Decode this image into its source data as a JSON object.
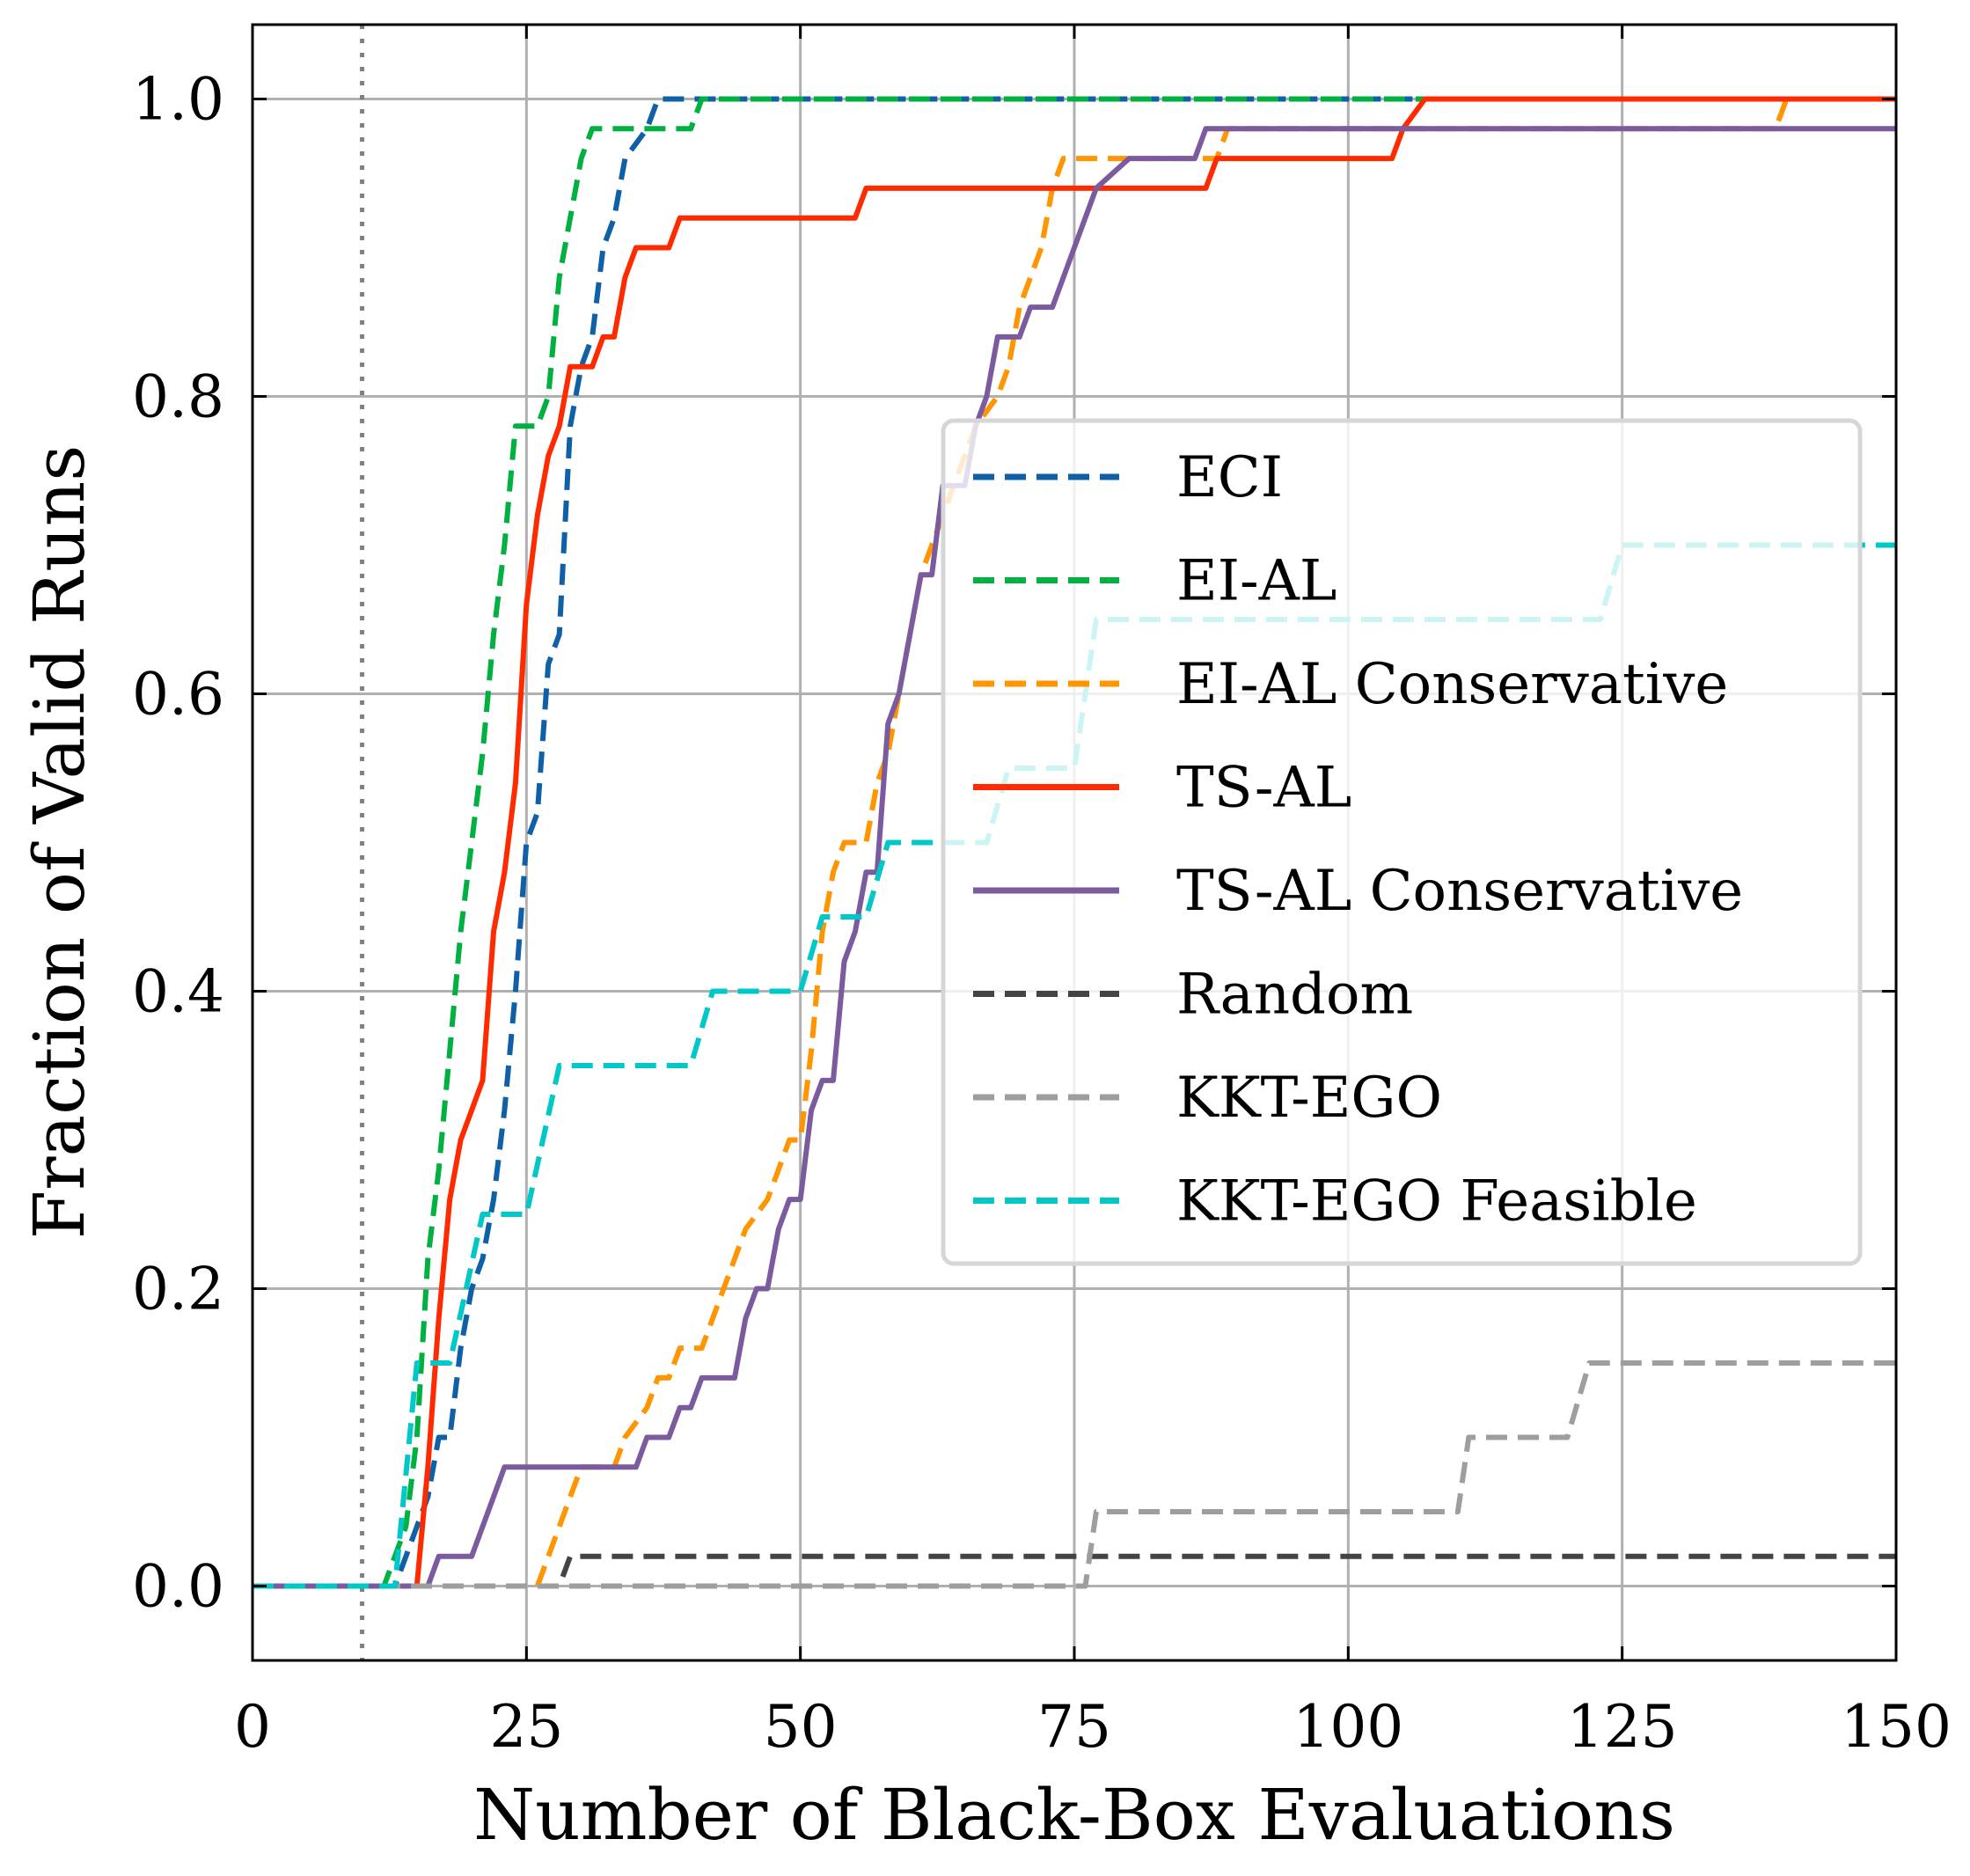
{
  "chart_data": {
    "type": "line",
    "title": "",
    "xlabel": "Number of Black-Box Evaluations",
    "ylabel": "Fraction of Valid Runs",
    "xlim": [
      0,
      150
    ],
    "ylim": [
      -0.05,
      1.05
    ],
    "xticks": [
      0,
      25,
      50,
      75,
      100,
      125,
      150
    ],
    "xtick_labels": [
      "0",
      "25",
      "50",
      "75",
      "100",
      "125",
      "150"
    ],
    "yticks": [
      0.0,
      0.2,
      0.4,
      0.6,
      0.8,
      1.0
    ],
    "ytick_labels": [
      "0.0",
      "0.2",
      "0.4",
      "0.6",
      "0.8",
      "1.0"
    ],
    "grid": true,
    "legend_position": "center-right",
    "reference_line": {
      "x": 10,
      "style": "dotted",
      "color": "#808080"
    },
    "series": [
      {
        "name": "ECI",
        "color": "#1060a8",
        "dash": "dashed",
        "points": [
          [
            0,
            0
          ],
          [
            13,
            0
          ],
          [
            16,
            0.06
          ],
          [
            17,
            0.1
          ],
          [
            18,
            0.1
          ],
          [
            19,
            0.16
          ],
          [
            20,
            0.2
          ],
          [
            21,
            0.22
          ],
          [
            22,
            0.26
          ],
          [
            23,
            0.32
          ],
          [
            24,
            0.4
          ],
          [
            25,
            0.5
          ],
          [
            26,
            0.52
          ],
          [
            27,
            0.62
          ],
          [
            28,
            0.64
          ],
          [
            29,
            0.78
          ],
          [
            30,
            0.82
          ],
          [
            31,
            0.84
          ],
          [
            32,
            0.9
          ],
          [
            33,
            0.92
          ],
          [
            34,
            0.96
          ],
          [
            36,
            0.98
          ],
          [
            37,
            1.0
          ],
          [
            150,
            1.0
          ]
        ]
      },
      {
        "name": "EI-AL",
        "color": "#00b040",
        "dash": "dashed",
        "points": [
          [
            0,
            0
          ],
          [
            12,
            0
          ],
          [
            14,
            0.04
          ],
          [
            15,
            0.1
          ],
          [
            16,
            0.22
          ],
          [
            17,
            0.28
          ],
          [
            18,
            0.36
          ],
          [
            19,
            0.44
          ],
          [
            20,
            0.5
          ],
          [
            21,
            0.56
          ],
          [
            22,
            0.64
          ],
          [
            23,
            0.7
          ],
          [
            24,
            0.78
          ],
          [
            26,
            0.78
          ],
          [
            27,
            0.8
          ],
          [
            28,
            0.88
          ],
          [
            29,
            0.92
          ],
          [
            30,
            0.96
          ],
          [
            31,
            0.98
          ],
          [
            40,
            0.98
          ],
          [
            41,
            1.0
          ],
          [
            150,
            1.0
          ]
        ]
      },
      {
        "name": "EI-AL Conservative",
        "color": "#ff9500",
        "dash": "dashed",
        "points": [
          [
            0,
            0
          ],
          [
            26,
            0
          ],
          [
            28,
            0.04
          ],
          [
            29,
            0.06
          ],
          [
            30,
            0.08
          ],
          [
            33,
            0.08
          ],
          [
            34,
            0.1
          ],
          [
            36,
            0.12
          ],
          [
            37,
            0.14
          ],
          [
            38,
            0.14
          ],
          [
            39,
            0.16
          ],
          [
            41,
            0.16
          ],
          [
            42,
            0.18
          ],
          [
            43,
            0.2
          ],
          [
            44,
            0.22
          ],
          [
            45,
            0.24
          ],
          [
            47,
            0.26
          ],
          [
            48,
            0.28
          ],
          [
            49,
            0.3
          ],
          [
            50,
            0.3
          ],
          [
            51,
            0.36
          ],
          [
            52,
            0.44
          ],
          [
            53,
            0.48
          ],
          [
            54,
            0.5
          ],
          [
            56,
            0.5
          ],
          [
            57,
            0.54
          ],
          [
            58,
            0.56
          ],
          [
            59,
            0.6
          ],
          [
            60,
            0.64
          ],
          [
            61,
            0.68
          ],
          [
            62,
            0.7
          ],
          [
            64,
            0.74
          ],
          [
            65,
            0.76
          ],
          [
            66,
            0.78
          ],
          [
            68,
            0.8
          ],
          [
            69,
            0.82
          ],
          [
            70,
            0.86
          ],
          [
            72,
            0.9
          ],
          [
            73,
            0.94
          ],
          [
            74,
            0.96
          ],
          [
            88,
            0.96
          ],
          [
            89,
            0.98
          ],
          [
            139,
            0.98
          ],
          [
            140,
            1.0
          ],
          [
            150,
            1.0
          ]
        ]
      },
      {
        "name": "TS-AL",
        "color": "#ff2b00",
        "dash": "solid",
        "points": [
          [
            0,
            0
          ],
          [
            15,
            0
          ],
          [
            16,
            0.08
          ],
          [
            17,
            0.18
          ],
          [
            18,
            0.26
          ],
          [
            19,
            0.3
          ],
          [
            20,
            0.32
          ],
          [
            21,
            0.34
          ],
          [
            22,
            0.44
          ],
          [
            23,
            0.48
          ],
          [
            24,
            0.54
          ],
          [
            25,
            0.66
          ],
          [
            26,
            0.72
          ],
          [
            27,
            0.76
          ],
          [
            28,
            0.78
          ],
          [
            29,
            0.82
          ],
          [
            31,
            0.82
          ],
          [
            32,
            0.84
          ],
          [
            33,
            0.84
          ],
          [
            34,
            0.88
          ],
          [
            35,
            0.9
          ],
          [
            38,
            0.9
          ],
          [
            39,
            0.92
          ],
          [
            55,
            0.92
          ],
          [
            56,
            0.94
          ],
          [
            87,
            0.94
          ],
          [
            88,
            0.96
          ],
          [
            104,
            0.96
          ],
          [
            105,
            0.98
          ],
          [
            107,
            1.0
          ],
          [
            150,
            1.0
          ]
        ]
      },
      {
        "name": "TS-AL Conservative",
        "color": "#7b5b9e",
        "dash": "solid",
        "points": [
          [
            0,
            0
          ],
          [
            16,
            0
          ],
          [
            17,
            0.02
          ],
          [
            20,
            0.02
          ],
          [
            23,
            0.08
          ],
          [
            35,
            0.08
          ],
          [
            36,
            0.1
          ],
          [
            37,
            0.1
          ],
          [
            38,
            0.1
          ],
          [
            39,
            0.12
          ],
          [
            40,
            0.12
          ],
          [
            41,
            0.14
          ],
          [
            44,
            0.14
          ],
          [
            45,
            0.18
          ],
          [
            46,
            0.2
          ],
          [
            47,
            0.2
          ],
          [
            48,
            0.24
          ],
          [
            49,
            0.26
          ],
          [
            50,
            0.26
          ],
          [
            51,
            0.32
          ],
          [
            52,
            0.34
          ],
          [
            53,
            0.34
          ],
          [
            54,
            0.42
          ],
          [
            55,
            0.44
          ],
          [
            56,
            0.48
          ],
          [
            57,
            0.48
          ],
          [
            58,
            0.58
          ],
          [
            59,
            0.6
          ],
          [
            60,
            0.64
          ],
          [
            61,
            0.68
          ],
          [
            62,
            0.68
          ],
          [
            63,
            0.74
          ],
          [
            65,
            0.74
          ],
          [
            66,
            0.78
          ],
          [
            67,
            0.8
          ],
          [
            68,
            0.84
          ],
          [
            70,
            0.84
          ],
          [
            71,
            0.86
          ],
          [
            73,
            0.86
          ],
          [
            75,
            0.9
          ],
          [
            77,
            0.94
          ],
          [
            80,
            0.96
          ],
          [
            86,
            0.96
          ],
          [
            87,
            0.98
          ],
          [
            150,
            0.98
          ]
        ]
      },
      {
        "name": "Random",
        "color": "#444444",
        "dash": "dashed",
        "points": [
          [
            0,
            0
          ],
          [
            28,
            0
          ],
          [
            29,
            0.02
          ],
          [
            150,
            0.02
          ]
        ]
      },
      {
        "name": "KKT-EGO",
        "color": "#9e9e9e",
        "dash": "dashed",
        "points": [
          [
            0,
            0
          ],
          [
            76,
            0
          ],
          [
            77,
            0.05
          ],
          [
            110,
            0.05
          ],
          [
            111,
            0.1
          ],
          [
            120,
            0.1
          ],
          [
            122,
            0.15
          ],
          [
            150,
            0.15
          ]
        ]
      },
      {
        "name": "KKT-EGO Feasible",
        "color": "#00c8c8",
        "dash": "dashed",
        "points": [
          [
            0,
            0
          ],
          [
            13,
            0
          ],
          [
            15,
            0.15
          ],
          [
            18,
            0.15
          ],
          [
            21,
            0.25
          ],
          [
            25,
            0.25
          ],
          [
            28,
            0.35
          ],
          [
            40,
            0.35
          ],
          [
            42,
            0.4
          ],
          [
            50,
            0.4
          ],
          [
            52,
            0.45
          ],
          [
            56,
            0.45
          ],
          [
            58,
            0.5
          ],
          [
            67,
            0.5
          ],
          [
            69,
            0.55
          ],
          [
            75,
            0.55
          ],
          [
            77,
            0.65
          ],
          [
            123,
            0.65
          ],
          [
            125,
            0.7
          ],
          [
            150,
            0.7
          ]
        ]
      }
    ]
  }
}
